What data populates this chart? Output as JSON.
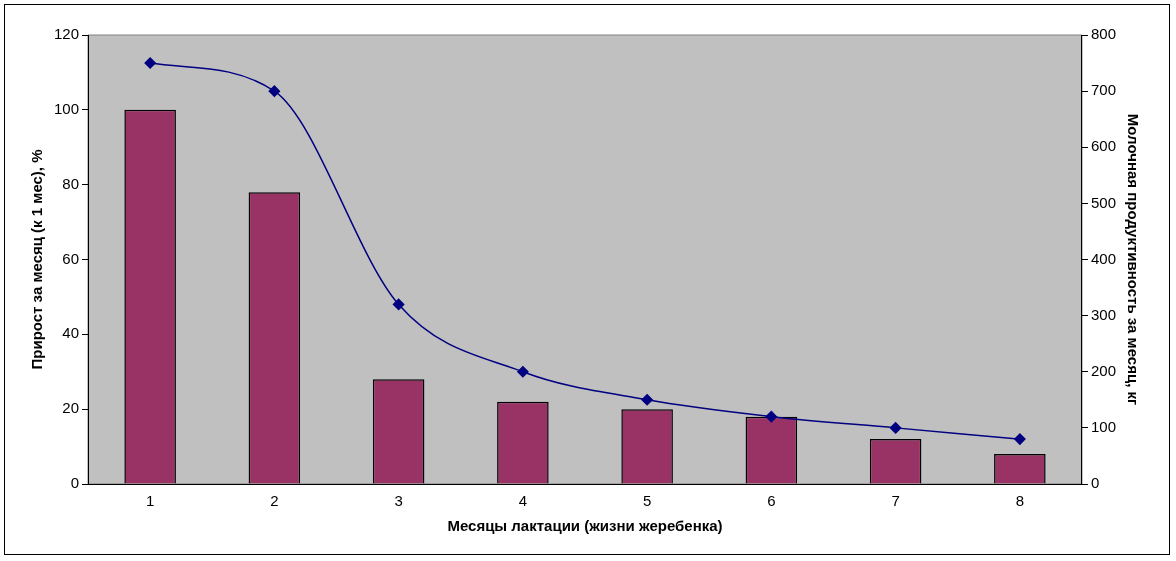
{
  "chart_data": {
    "type": "bar",
    "xlabel": "Месяцы лактации (жизни жеребенка)",
    "ylabel": "Прирост за месяц (к 1 мес), %",
    "y2label": "Молочная продуктивность за месяц, кг",
    "categories": [
      "1",
      "2",
      "3",
      "4",
      "5",
      "6",
      "7",
      "8"
    ],
    "series": [
      {
        "color": "#993366",
        "values": [
          100,
          78,
          28,
          22,
          20,
          18,
          12,
          8
        ]
      },
      {
        "type": "line",
        "axis": "y2",
        "color": "#000080",
        "values": [
          750,
          700,
          320,
          200,
          150,
          120,
          100,
          80
        ]
      }
    ],
    "ylim": [
      0,
      120
    ],
    "yticks": [
      0,
      20,
      40,
      60,
      80,
      100,
      120
    ],
    "y2lim": [
      0,
      800
    ],
    "y2ticks": [
      0,
      100,
      200,
      300,
      400,
      500,
      600,
      700,
      800
    ],
    "grid": false,
    "legend": false,
    "marker": "diamond",
    "line_style": "solid"
  }
}
